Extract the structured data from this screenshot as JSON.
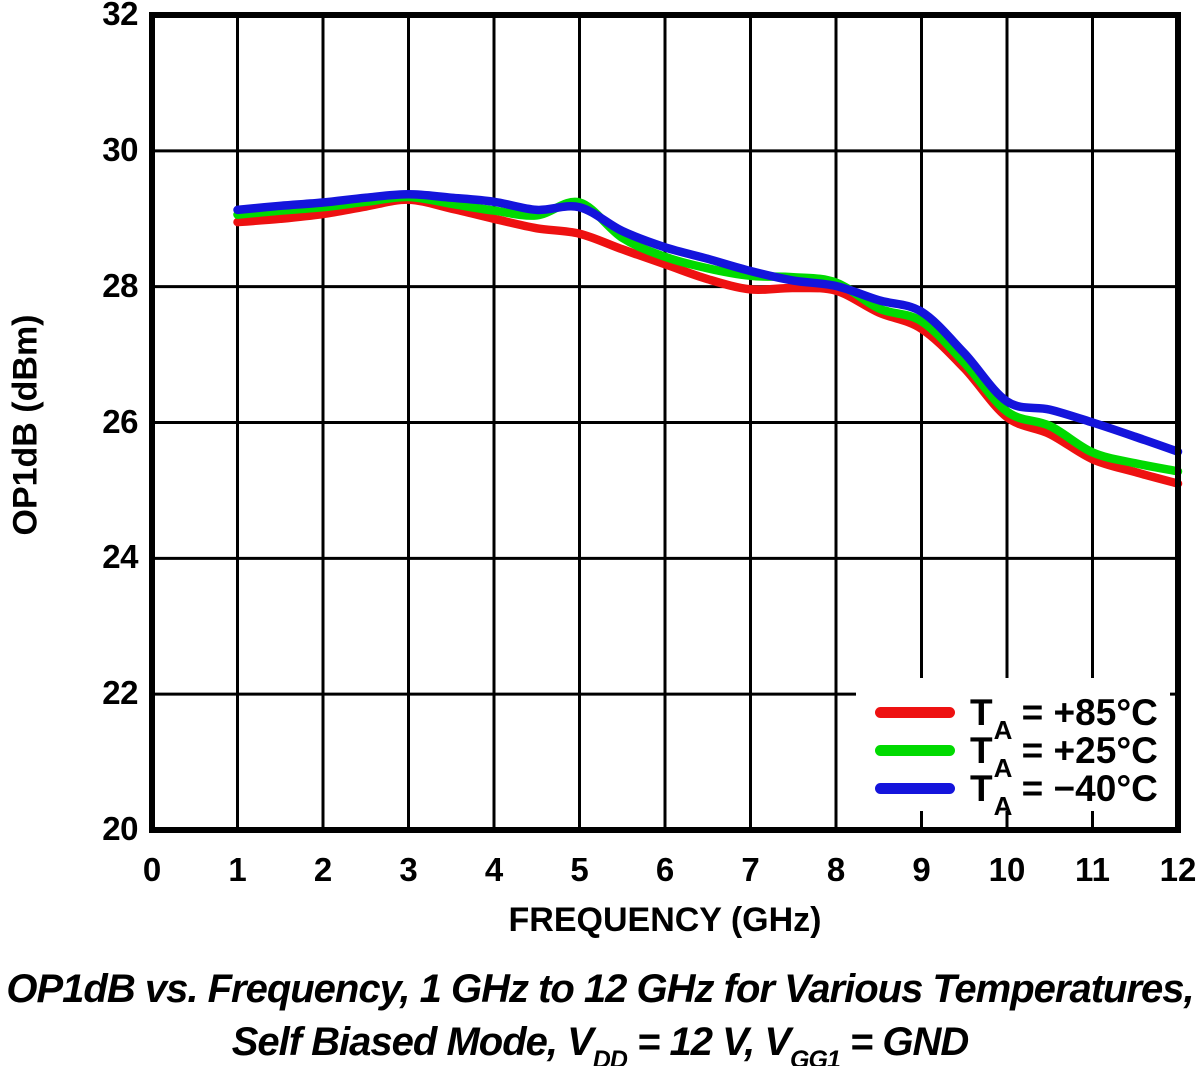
{
  "chart_data": {
    "type": "line",
    "title": "",
    "xlabel": "FREQUENCY (GHz)",
    "ylabel": "OP1dB (dBm)",
    "xlim": [
      0,
      12
    ],
    "ylim": [
      20,
      32
    ],
    "x_ticks": [
      0,
      1,
      2,
      3,
      4,
      5,
      6,
      7,
      8,
      9,
      10,
      11,
      12
    ],
    "y_ticks": [
      32,
      30,
      28,
      26,
      24,
      22,
      20
    ],
    "grid": "on",
    "legend_position": "inside lower right",
    "x": [
      1,
      1.5,
      2,
      2.5,
      3,
      3.5,
      4,
      4.5,
      5,
      5.5,
      6,
      6.5,
      7,
      7.5,
      8,
      8.5,
      9,
      9.5,
      10,
      10.5,
      11,
      11.5,
      12
    ],
    "series": [
      {
        "name": "TA = +85°C",
        "color": "#ee1111",
        "values": [
          28.95,
          29.0,
          29.07,
          29.18,
          29.28,
          29.15,
          29.0,
          28.86,
          28.78,
          28.55,
          28.33,
          28.11,
          27.96,
          27.98,
          27.94,
          27.62,
          27.38,
          26.8,
          26.08,
          25.83,
          25.46,
          25.27,
          25.1
        ]
      },
      {
        "name": "TA = +25°C",
        "color": "#00da00",
        "values": [
          29.06,
          29.12,
          29.17,
          29.25,
          29.32,
          29.22,
          29.12,
          29.05,
          29.24,
          28.72,
          28.44,
          28.27,
          28.16,
          28.14,
          28.06,
          27.68,
          27.49,
          26.88,
          26.16,
          25.95,
          25.56,
          25.4,
          25.28
        ]
      },
      {
        "name": "TA = −40°C",
        "color": "#1414dc",
        "values": [
          29.13,
          29.19,
          29.24,
          29.31,
          29.36,
          29.31,
          29.25,
          29.13,
          29.17,
          28.82,
          28.58,
          28.41,
          28.23,
          28.09,
          28.01,
          27.8,
          27.63,
          27.02,
          26.31,
          26.19,
          26.0,
          25.79,
          25.57
        ]
      }
    ]
  },
  "y_axis": {
    "title": "OP1dB (dBm)"
  },
  "x_axis": {
    "title": "FREQUENCY (GHz)"
  },
  "legend": {
    "entries": [
      {
        "sym": "T",
        "sub": "A",
        "rest": " = +85°C"
      },
      {
        "sym": "T",
        "sub": "A",
        "rest": " = +25°C"
      },
      {
        "sym": "T",
        "sub": "A",
        "rest": " = −40°C"
      }
    ]
  },
  "caption": {
    "line1": "OP1dB vs. Frequency, 1 GHz to 12 GHz for Various Temperatures,",
    "line2": {
      "p1": "Self Biased Mode, V",
      "s1": "DD",
      "p2": " = 12 V, V",
      "s2": "GG1",
      "p3": " = GND"
    }
  }
}
